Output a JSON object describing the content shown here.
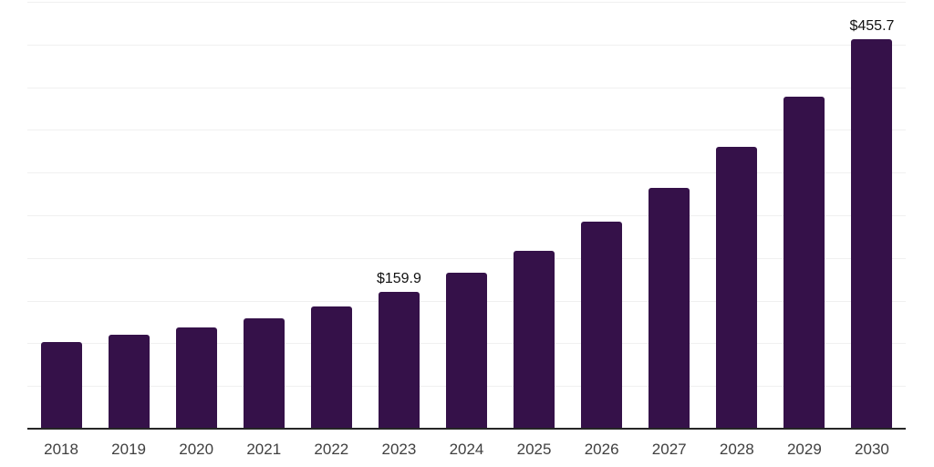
{
  "chart_data": {
    "type": "bar",
    "title": "",
    "xlabel": "",
    "ylabel": "",
    "categories": [
      "2018",
      "2019",
      "2020",
      "2021",
      "2022",
      "2023",
      "2024",
      "2025",
      "2026",
      "2027",
      "2028",
      "2029",
      "2030"
    ],
    "values": [
      101.5,
      110.4,
      118.6,
      129.0,
      143.2,
      159.9,
      182.4,
      208.3,
      242.2,
      282.1,
      330.4,
      388.9,
      455.7
    ],
    "value_labels": [
      null,
      null,
      null,
      null,
      null,
      "$159.9",
      null,
      null,
      null,
      null,
      null,
      null,
      "$455.7"
    ],
    "ylim": [
      0,
      500
    ],
    "gridline_step": 50,
    "grid": "horizontal",
    "legend": "none",
    "y_axis_tick_labels": "none"
  },
  "colors": {
    "background": "#ffffff",
    "bar": "#351149",
    "gridline": "#f0f0f0",
    "axis_line": "#262626",
    "tick_label": "#404040",
    "value_label": "#111111"
  }
}
